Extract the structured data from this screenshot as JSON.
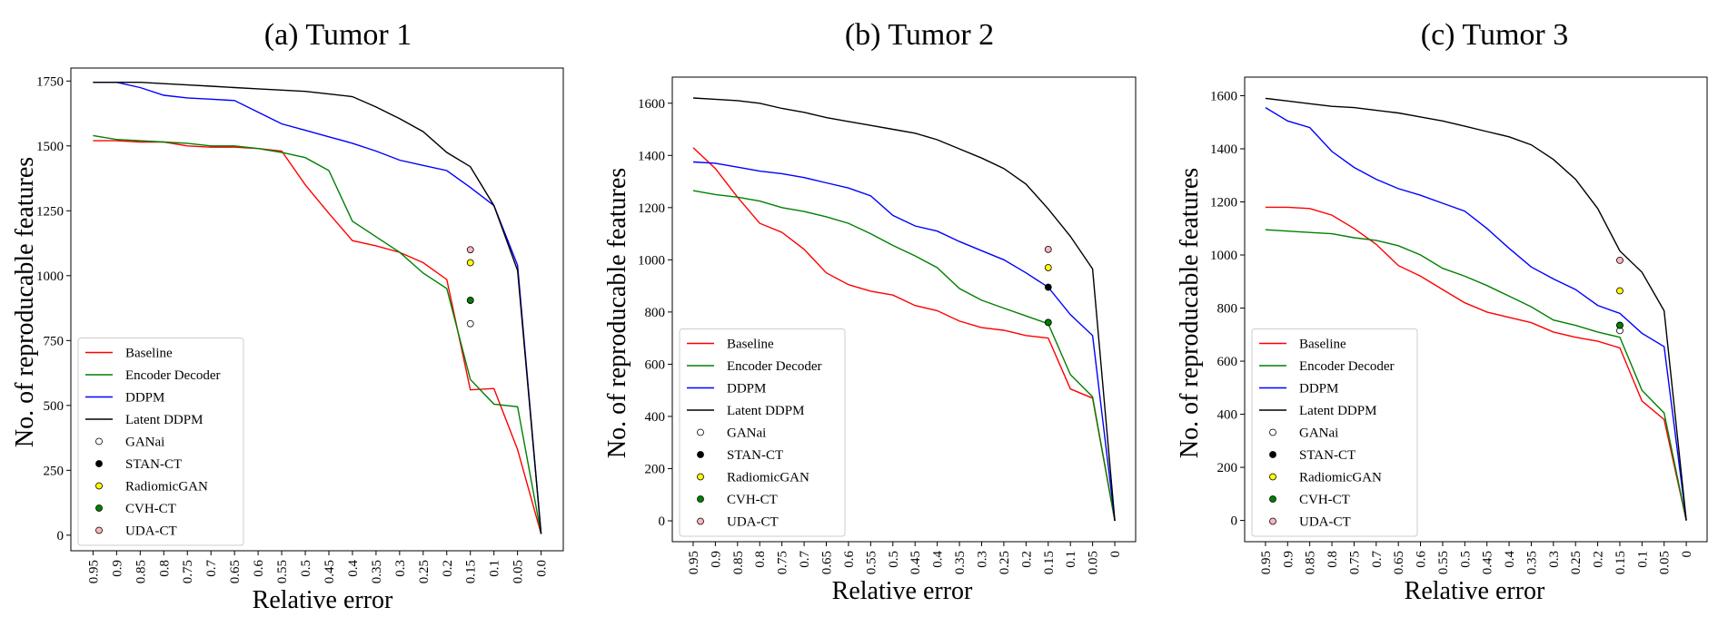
{
  "chart_data": [
    {
      "type": "line",
      "title": "(a) Tumor 1",
      "xlabel": "Relative error",
      "ylabel": "No. of reproducable features",
      "x": [
        "0.95",
        "0.9",
        "0.85",
        "0.8",
        "0.75",
        "0.7",
        "0.65",
        "0.6",
        "0.55",
        "0.5",
        "0.45",
        "0.4",
        "0.35",
        "0.3",
        "0.25",
        "0.2",
        "0.15",
        "0.1",
        "0.05",
        "0.0"
      ],
      "ylim": [
        -60,
        1800
      ],
      "yticks": [
        0,
        250,
        500,
        750,
        1000,
        1250,
        1500,
        1750
      ],
      "series": [
        {
          "name": "Baseline",
          "color": "#ff0000",
          "values": [
            1520,
            1520,
            1515,
            1515,
            1500,
            1495,
            1495,
            1490,
            1480,
            1350,
            1240,
            1135,
            1115,
            1090,
            1050,
            985,
            560,
            565,
            330,
            5
          ]
        },
        {
          "name": "Encoder Decoder",
          "color": "#008000",
          "values": [
            1540,
            1525,
            1520,
            1515,
            1510,
            1500,
            1500,
            1490,
            1475,
            1455,
            1405,
            1210,
            1150,
            1090,
            1010,
            950,
            600,
            505,
            495,
            5
          ]
        },
        {
          "name": "DDPM",
          "color": "#0000ff",
          "values": [
            1745,
            1745,
            1725,
            1695,
            1685,
            1680,
            1675,
            1630,
            1585,
            1560,
            1535,
            1510,
            1480,
            1445,
            1425,
            1405,
            1340,
            1270,
            1040,
            5
          ]
        },
        {
          "name": "Latent DDPM",
          "color": "#000000",
          "values": [
            1745,
            1745,
            1745,
            1740,
            1735,
            1730,
            1725,
            1720,
            1715,
            1710,
            1700,
            1690,
            1650,
            1605,
            1555,
            1475,
            1420,
            1270,
            1020,
            5
          ]
        }
      ],
      "points": [
        {
          "name": "GANai",
          "x": "0.15",
          "y": 815,
          "color": "#ffffff"
        },
        {
          "name": "STAN-CT",
          "x": "0.15",
          "y": 905,
          "color": "#000000"
        },
        {
          "name": "RadiomicGAN",
          "x": "0.15",
          "y": 1050,
          "color": "#ffff00"
        },
        {
          "name": "CVH-CT",
          "x": "0.15",
          "y": 905,
          "color": "#008000"
        },
        {
          "name": "UDA-CT",
          "x": "0.15",
          "y": 1100,
          "color": "#ffb6c1"
        }
      ]
    },
    {
      "type": "line",
      "title": "(b) Tumor 2",
      "xlabel": "Relative error",
      "ylabel": "No. of reproducable features",
      "x": [
        "0.95",
        "0.9",
        "0.85",
        "0.8",
        "0.75",
        "0.7",
        "0.65",
        "0.6",
        "0.55",
        "0.5",
        "0.45",
        "0.4",
        "0.35",
        "0.3",
        "0.25",
        "0.2",
        "0.15",
        "0.1",
        "0.05",
        "0"
      ],
      "ylim": [
        -80,
        1700
      ],
      "yticks": [
        0,
        200,
        400,
        600,
        800,
        1000,
        1200,
        1400,
        1600
      ],
      "series": [
        {
          "name": "Baseline",
          "color": "#ff0000",
          "values": [
            1430,
            1350,
            1240,
            1140,
            1105,
            1040,
            950,
            905,
            880,
            865,
            825,
            805,
            765,
            740,
            730,
            710,
            700,
            505,
            470,
            0
          ]
        },
        {
          "name": "Encoder Decoder",
          "color": "#008000",
          "values": [
            1265,
            1250,
            1240,
            1225,
            1200,
            1185,
            1165,
            1140,
            1100,
            1055,
            1015,
            970,
            890,
            845,
            815,
            785,
            755,
            560,
            475,
            0
          ]
        },
        {
          "name": "DDPM",
          "color": "#0000ff",
          "values": [
            1375,
            1370,
            1355,
            1340,
            1330,
            1315,
            1295,
            1275,
            1245,
            1170,
            1130,
            1110,
            1070,
            1035,
            1000,
            950,
            895,
            790,
            710,
            0
          ]
        },
        {
          "name": "Latent DDPM",
          "color": "#000000",
          "values": [
            1620,
            1615,
            1610,
            1600,
            1580,
            1565,
            1545,
            1530,
            1515,
            1500,
            1485,
            1460,
            1425,
            1390,
            1350,
            1290,
            1195,
            1090,
            965,
            0
          ]
        }
      ],
      "points": [
        {
          "name": "GANai",
          "x": "0.15",
          "y": 760,
          "color": "#ffffff"
        },
        {
          "name": "STAN-CT",
          "x": "0.15",
          "y": 895,
          "color": "#000000"
        },
        {
          "name": "RadiomicGAN",
          "x": "0.15",
          "y": 970,
          "color": "#ffff00"
        },
        {
          "name": "CVH-CT",
          "x": "0.15",
          "y": 760,
          "color": "#008000"
        },
        {
          "name": "UDA-CT",
          "x": "0.15",
          "y": 1040,
          "color": "#ffb6c1"
        }
      ]
    },
    {
      "type": "line",
      "title": "(c) Tumor 3",
      "xlabel": "Relative error",
      "ylabel": "No. of reproducable features",
      "x": [
        "0.95",
        "0.9",
        "0.85",
        "0.8",
        "0.75",
        "0.7",
        "0.65",
        "0.6",
        "0.55",
        "0.5",
        "0.45",
        "0.4",
        "0.35",
        "0.3",
        "0.25",
        "0.2",
        "0.15",
        "0.1",
        "0.05",
        "0"
      ],
      "ylim": [
        -80,
        1670
      ],
      "yticks": [
        0,
        200,
        400,
        600,
        800,
        1000,
        1200,
        1400,
        1600
      ],
      "series": [
        {
          "name": "Baseline",
          "color": "#ff0000",
          "values": [
            1180,
            1180,
            1175,
            1150,
            1100,
            1040,
            960,
            920,
            870,
            820,
            785,
            765,
            745,
            710,
            690,
            675,
            650,
            450,
            380,
            0
          ]
        },
        {
          "name": "Encoder Decoder",
          "color": "#008000",
          "values": [
            1095,
            1090,
            1085,
            1080,
            1065,
            1055,
            1035,
            1000,
            950,
            920,
            885,
            845,
            805,
            755,
            735,
            710,
            690,
            490,
            405,
            0
          ]
        },
        {
          "name": "DDPM",
          "color": "#0000ff",
          "values": [
            1555,
            1505,
            1480,
            1390,
            1330,
            1285,
            1250,
            1225,
            1195,
            1165,
            1100,
            1025,
            955,
            910,
            870,
            810,
            780,
            705,
            655,
            0
          ]
        },
        {
          "name": "Latent DDPM",
          "color": "#000000",
          "values": [
            1590,
            1580,
            1570,
            1560,
            1555,
            1545,
            1535,
            1520,
            1505,
            1485,
            1465,
            1445,
            1415,
            1360,
            1285,
            1175,
            1015,
            935,
            790,
            0
          ]
        }
      ],
      "points": [
        {
          "name": "GANai",
          "x": "0.15",
          "y": 715,
          "color": "#ffffff"
        },
        {
          "name": "STAN-CT",
          "x": "0.15",
          "y": 735,
          "color": "#000000"
        },
        {
          "name": "RadiomicGAN",
          "x": "0.15",
          "y": 865,
          "color": "#ffff00"
        },
        {
          "name": "CVH-CT",
          "x": "0.15",
          "y": 735,
          "color": "#008000"
        },
        {
          "name": "UDA-CT",
          "x": "0.15",
          "y": 980,
          "color": "#ffb6c1"
        }
      ]
    }
  ]
}
